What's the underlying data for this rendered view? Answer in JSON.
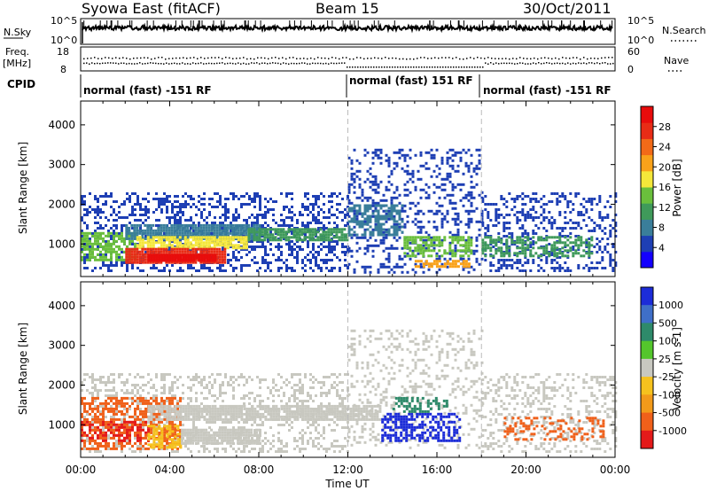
{
  "header": {
    "title_left": "Syowa East (fitACF)",
    "title_center": "Beam 15",
    "title_right": "30/Oct/2011"
  },
  "summary_panel": {
    "nsky_label": "N.Sky",
    "nsearch_label": "N.Search",
    "nsky_ticks": [
      "10^5",
      "10^0"
    ],
    "nsearch_ticks": [
      "10^5",
      "10^0"
    ],
    "freq_label": "Freq.",
    "freq_unit": "[MHz]",
    "freq_ticks": [
      "18",
      "8"
    ],
    "nave_label": "Nave",
    "nave_ticks": [
      "60",
      "0"
    ],
    "cpid_label": "CPID",
    "modes": [
      {
        "label": "normal (fast) -151 RF",
        "start_hour": 0,
        "end_hour": 12
      },
      {
        "label": "normal (fast) 151 RF",
        "start_hour": 12,
        "end_hour": 18
      },
      {
        "label": "normal (fast) -151 RF",
        "start_hour": 18,
        "end_hour": 24
      }
    ]
  },
  "chart_data": [
    {
      "type": "heatmap",
      "parameter": "Power",
      "ylabel": "Slant Range [km]",
      "ylim": [
        180,
        4600
      ],
      "yticks": [
        1000,
        2000,
        3000,
        4000
      ],
      "xlim_hours": [
        0,
        24
      ],
      "colorbar": {
        "label": "Power [dB]",
        "ticks": [
          "4",
          "8",
          "12",
          "16",
          "20",
          "24",
          "28"
        ],
        "colors": [
          "#1400ff",
          "#1e3fb4",
          "#3a7e9a",
          "#3f9a5a",
          "#6abf3c",
          "#f4e73a",
          "#f9a21a",
          "#f26a18",
          "#e82c16",
          "#e80c0c"
        ]
      },
      "regions": [
        {
          "t0": 0.0,
          "t1": 12.0,
          "r0": 300,
          "r1": 2300,
          "color_index": 1,
          "density": 0.35
        },
        {
          "t0": 0.0,
          "t1": 2.5,
          "r0": 600,
          "r1": 1300,
          "color_index": 4,
          "density": 0.7
        },
        {
          "t0": 2.0,
          "t1": 8.0,
          "r0": 1150,
          "r1": 1500,
          "color_index": 2,
          "density": 0.85
        },
        {
          "t0": 2.5,
          "t1": 7.5,
          "r0": 900,
          "r1": 1200,
          "color_index": 5,
          "density": 0.8
        },
        {
          "t0": 2.0,
          "t1": 6.5,
          "r0": 500,
          "r1": 900,
          "color_index": 8,
          "density": 0.9
        },
        {
          "t0": 3.0,
          "t1": 6.0,
          "r0": 550,
          "r1": 750,
          "color_index": 9,
          "density": 0.95
        },
        {
          "t0": 7.5,
          "t1": 12.0,
          "r0": 1100,
          "r1": 1400,
          "color_index": 3,
          "density": 0.85
        },
        {
          "t0": 12.0,
          "t1": 18.0,
          "r0": 300,
          "r1": 3400,
          "color_index": 1,
          "density": 0.25
        },
        {
          "t0": 12.0,
          "t1": 14.5,
          "r0": 1200,
          "r1": 2000,
          "color_index": 2,
          "density": 0.6
        },
        {
          "t0": 14.5,
          "t1": 17.5,
          "r0": 700,
          "r1": 1200,
          "color_index": 4,
          "density": 0.6
        },
        {
          "t0": 15.0,
          "t1": 17.5,
          "r0": 400,
          "r1": 600,
          "color_index": 6,
          "density": 0.6
        },
        {
          "t0": 18.0,
          "t1": 24.0,
          "r0": 300,
          "r1": 2300,
          "color_index": 1,
          "density": 0.3
        },
        {
          "t0": 18.0,
          "t1": 23.0,
          "r0": 700,
          "r1": 1200,
          "color_index": 3,
          "density": 0.55
        }
      ]
    },
    {
      "type": "heatmap",
      "parameter": "Velocity",
      "ylabel": "Slant Range [km]",
      "xlabel": "Time UT",
      "ylim": [
        180,
        4600
      ],
      "yticks": [
        1000,
        2000,
        3000,
        4000
      ],
      "xlim_hours": [
        0,
        24
      ],
      "xticks": [
        "00:00",
        "04:00",
        "08:00",
        "12:00",
        "16:00",
        "20:00",
        "00:00"
      ],
      "colorbar": {
        "label": "Velocity [m s-1]",
        "ticks": [
          "1000",
          "500",
          "100",
          "25",
          "-25",
          "-100",
          "-500",
          "-1000"
        ],
        "colors": [
          "#1c2cd8",
          "#3f6fc8",
          "#2e8a6a",
          "#54c62c",
          "#c8c8c0",
          "#f6c21e",
          "#f29a1a",
          "#f0601a",
          "#e41a1a"
        ]
      },
      "regions": [
        {
          "t0": 0.0,
          "t1": 12.0,
          "r0": 300,
          "r1": 2300,
          "color_index": 4,
          "density": 0.3
        },
        {
          "t0": 0.0,
          "t1": 4.5,
          "r0": 400,
          "r1": 1700,
          "color_index": 7,
          "density": 0.55
        },
        {
          "t0": 0.0,
          "t1": 3.0,
          "r0": 600,
          "r1": 1100,
          "color_index": 8,
          "density": 0.4
        },
        {
          "t0": 3.0,
          "t1": 4.5,
          "r0": 400,
          "r1": 1000,
          "color_index": 5,
          "density": 0.6
        },
        {
          "t0": 3.0,
          "t1": 13.5,
          "r0": 1150,
          "r1": 1500,
          "color_index": 4,
          "density": 0.85
        },
        {
          "t0": 4.5,
          "t1": 8.0,
          "r0": 500,
          "r1": 900,
          "color_index": 4,
          "density": 0.85
        },
        {
          "t0": 12.0,
          "t1": 18.0,
          "r0": 400,
          "r1": 3400,
          "color_index": 4,
          "density": 0.2
        },
        {
          "t0": 13.5,
          "t1": 17.0,
          "r0": 600,
          "r1": 1300,
          "color_index": 0,
          "density": 0.55
        },
        {
          "t0": 14.0,
          "t1": 16.5,
          "r0": 1300,
          "r1": 1700,
          "color_index": 2,
          "density": 0.35
        },
        {
          "t0": 18.0,
          "t1": 24.0,
          "r0": 300,
          "r1": 2300,
          "color_index": 4,
          "density": 0.25
        },
        {
          "t0": 19.0,
          "t1": 23.5,
          "r0": 600,
          "r1": 1200,
          "color_index": 7,
          "density": 0.3
        }
      ]
    }
  ]
}
